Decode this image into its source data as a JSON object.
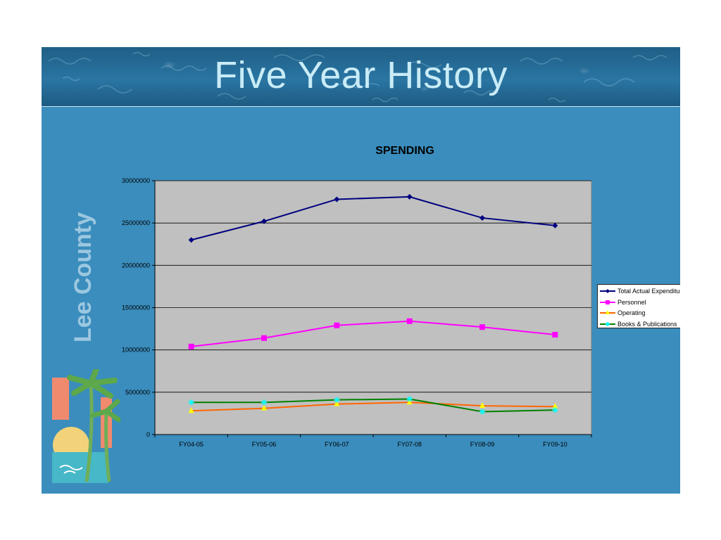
{
  "slide": {
    "title": "Five Year History",
    "brand": "Lee County"
  },
  "chart_data": {
    "type": "line",
    "title": "SPENDING",
    "xlabel": "",
    "ylabel": "",
    "categories": [
      "FY04-05",
      "FY05-06",
      "FY06-07",
      "FY07-08",
      "FY08-09",
      "FY09-10"
    ],
    "ylim": [
      0,
      30000000
    ],
    "yticks": [
      "0",
      "5000000",
      "10000000",
      "15000000",
      "20000000",
      "25000000",
      "30000000"
    ],
    "grid": true,
    "legend_position": "right",
    "series": [
      {
        "name": "Total Actual Expenditures",
        "color": "#000080",
        "marker": "diamond",
        "values": [
          23000000,
          25200000,
          27800000,
          28100000,
          25600000,
          24700000
        ]
      },
      {
        "name": "Personnel",
        "color": "#ff00ff",
        "marker": "square",
        "values": [
          10400000,
          11400000,
          12900000,
          13400000,
          12700000,
          11800000
        ]
      },
      {
        "name": "Operating",
        "color": "#ff6600",
        "marker": "triangle",
        "markerColor": "#ffff00",
        "values": [
          2800000,
          3100000,
          3600000,
          3800000,
          3400000,
          3300000
        ]
      },
      {
        "name": "Books & Publications",
        "color": "#008000",
        "marker": "star",
        "markerColor": "#00ffff",
        "values": [
          3800000,
          3800000,
          4100000,
          4200000,
          2700000,
          2900000
        ]
      }
    ]
  }
}
